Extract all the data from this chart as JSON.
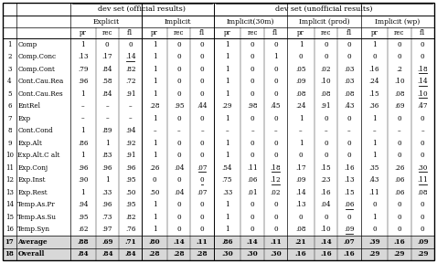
{
  "header_top_left": "dev set (official results)",
  "header_top_right": "dev set (unofficial results)",
  "header_mid": [
    "Explicit",
    "Implicit",
    "Implicit(30m)",
    "Implicit (prod)",
    "Implicit (wp)"
  ],
  "row_nums": [
    "1",
    "2",
    "3",
    "4",
    "5",
    "6",
    "7",
    "8",
    "9",
    "10",
    "11",
    "12",
    "13",
    "14",
    "15",
    "16",
    "17",
    "18"
  ],
  "row_labels": [
    "Comp",
    "Comp.Conc",
    "Comp.Cont",
    "Cont.Cau.Rea",
    "Cont.Cau.Res",
    "EntRel",
    "Exp",
    "Cont.Cond",
    "Exp.Alt",
    "Exp.Alt.C alt",
    "Exp.Conj",
    "Exp.Inst",
    "Exp.Rest",
    "Temp.As.Pr",
    "Temp.As.Su",
    "Temp.Syn",
    "Average",
    "Overall"
  ],
  "data": [
    [
      "1",
      "0",
      "0",
      "1",
      "0",
      "0",
      "1",
      "0",
      "0",
      "1",
      "0",
      "0",
      "1",
      "0",
      "0"
    ],
    [
      ".13",
      ".17",
      ".14",
      "1",
      "0",
      "0",
      "1",
      "0",
      "1",
      "0",
      "0",
      "0",
      "0",
      "0",
      "0"
    ],
    [
      ".79",
      ".84",
      ".82",
      "1",
      "0",
      "0",
      "1",
      "0",
      "0",
      ".05",
      ".02",
      ".03",
      ".16",
      ".2",
      ".18"
    ],
    [
      ".96",
      ".58",
      ".72",
      "1",
      "0",
      "0",
      "1",
      "0",
      "0",
      ".09",
      ".10",
      ".03",
      ".24",
      ".10",
      ".14"
    ],
    [
      "1",
      ".84",
      ".91",
      "1",
      "0",
      "0",
      "1",
      "0",
      "0",
      ".08",
      ".08",
      ".08",
      ".15",
      ".08",
      ".10"
    ],
    [
      "–",
      "–",
      "–",
      ".28",
      ".95",
      ".44",
      ".29",
      ".98",
      ".45",
      ".24",
      ".91",
      ".43",
      ".36",
      ".69",
      ".47"
    ],
    [
      "–",
      "–",
      "–",
      "1",
      "0",
      "0",
      "1",
      "0",
      "0",
      "1",
      "0",
      "0",
      "1",
      "0",
      "0"
    ],
    [
      "1",
      ".89",
      ".94",
      "–",
      "–",
      "–",
      "–",
      "–",
      "–",
      "–",
      "–",
      "–",
      "–",
      "–",
      "–"
    ],
    [
      ".86",
      "1",
      ".92",
      "1",
      "0",
      "0",
      "1",
      "0",
      "0",
      "1",
      "0",
      "0",
      "1",
      "0",
      "0"
    ],
    [
      "1",
      ".83",
      ".91",
      "1",
      "0",
      "0",
      "1",
      "0",
      "0",
      "0",
      "0",
      "0",
      "1",
      "0",
      "0"
    ],
    [
      ".96",
      ".96",
      ".96",
      ".26",
      ".04",
      ".07",
      ".54",
      ".11",
      ".18",
      ".17",
      ".15",
      ".16",
      ".35",
      ".26",
      ".30"
    ],
    [
      ".90",
      "1",
      ".95",
      "0",
      "0",
      "0",
      ".75",
      ".06",
      ".12",
      ".09",
      ".23",
      ".13",
      ".43",
      ".06",
      ".11"
    ],
    [
      "1",
      ".33",
      ".50",
      ".50",
      ".04",
      ".07",
      ".33",
      ".01",
      ".02",
      ".14",
      ".16",
      ".15",
      ".11",
      ".06",
      ".08"
    ],
    [
      ".94",
      ".96",
      ".95",
      "1",
      "0",
      "0",
      "1",
      "0",
      "0",
      ".13",
      ".04",
      ".06",
      "0",
      "0",
      "0"
    ],
    [
      ".95",
      ".73",
      ".82",
      "1",
      "0",
      "0",
      "1",
      "0",
      "0",
      "0",
      "0",
      "0",
      "1",
      "0",
      "0"
    ],
    [
      ".62",
      ".97",
      ".76",
      "1",
      "0",
      "0",
      "1",
      "0",
      "0",
      ".08",
      ".10",
      ".09",
      "0",
      "0",
      "0"
    ],
    [
      ".88",
      ".69",
      ".71",
      ".80",
      ".14",
      ".11",
      ".86",
      ".14",
      ".11",
      ".21",
      ".14",
      ".07",
      ".39",
      ".16",
      ".09"
    ],
    [
      ".84",
      ".84",
      ".84",
      ".28",
      ".28",
      ".28",
      ".30",
      ".30",
      ".30",
      ".16",
      ".16",
      ".16",
      ".29",
      ".29",
      ".29"
    ]
  ],
  "underline_map": {
    "1": [
      2
    ],
    "2": [
      14
    ],
    "3": [
      14
    ],
    "4": [
      14
    ],
    "10": [
      5,
      8,
      14
    ],
    "11": [
      5,
      8,
      14
    ],
    "13": [
      11
    ],
    "15": [
      11
    ]
  },
  "bold_rows": [
    16,
    17
  ],
  "shaded_rows": [
    16,
    17
  ],
  "figsize": [
    4.78,
    2.88
  ],
  "dpi": 100
}
